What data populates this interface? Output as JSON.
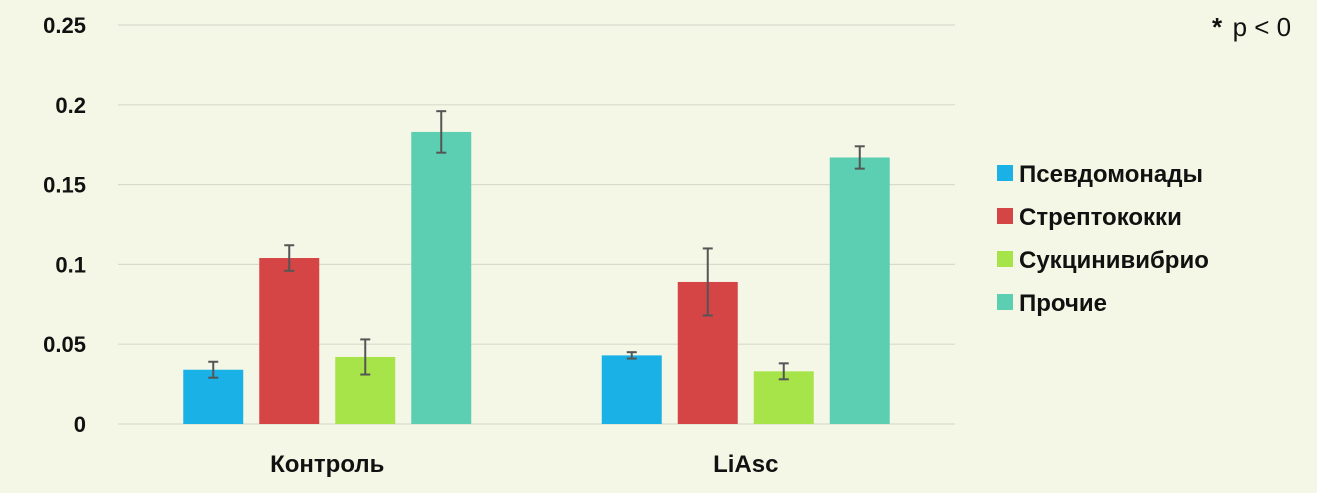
{
  "annotation": {
    "star": "*",
    "text": "p < 0"
  },
  "chart_data": {
    "type": "bar",
    "categories": [
      "Контроль",
      "LiAsc"
    ],
    "series": [
      {
        "name": "Псевдомонады",
        "color": "#1ab2e6",
        "values": [
          0.034,
          0.043
        ],
        "errors": [
          0.005,
          0.002
        ]
      },
      {
        "name": "Стрептококки",
        "color": "#d64545",
        "values": [
          0.104,
          0.089
        ],
        "errors": [
          0.008,
          0.021
        ]
      },
      {
        "name": "Сукцинивибрио",
        "color": "#a6e44a",
        "values": [
          0.042,
          0.033
        ],
        "errors": [
          0.011,
          0.005
        ]
      },
      {
        "name": "Прочие",
        "color": "#5ccfb2",
        "values": [
          0.183,
          0.167
        ],
        "errors": [
          0.013,
          0.007
        ]
      }
    ],
    "yticks": [
      "0",
      "0.05",
      "0.1",
      "0.15",
      "0.2",
      "0.25"
    ],
    "ylim": [
      0,
      0.25
    ],
    "grid": true,
    "legend": "right"
  }
}
